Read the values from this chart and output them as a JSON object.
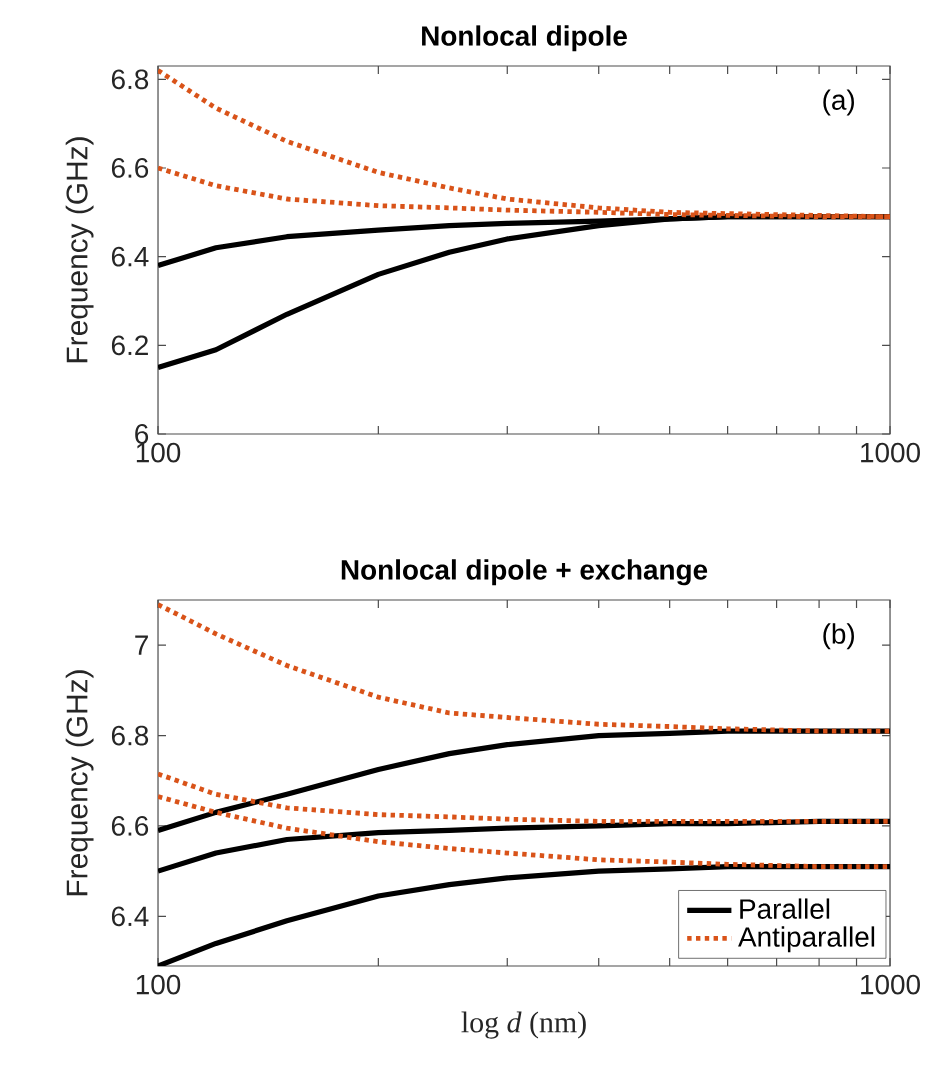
{
  "chart_data": [
    {
      "type": "line",
      "title": "Nonlocal dipole",
      "ylabel": "Frequency (GHz)",
      "annotations": [
        "(a)"
      ],
      "x": [
        100,
        120,
        150,
        200,
        250,
        300,
        400,
        500,
        600,
        800,
        1000
      ],
      "log": "x",
      "xlim": [
        100,
        1000
      ],
      "ylim": [
        6,
        6.83
      ],
      "xticks": [
        100,
        {
          "value": 200,
          "label": null
        },
        {
          "value": 300,
          "label": null
        },
        {
          "value": 400,
          "label": null
        },
        {
          "value": 500,
          "label": null
        },
        {
          "value": 600,
          "label": null
        },
        {
          "value": 700,
          "label": null
        },
        {
          "value": 800,
          "label": null
        },
        {
          "value": 900,
          "label": null
        },
        1000
      ],
      "yticks": [
        6,
        6.2,
        6.4,
        6.6,
        6.8
      ],
      "grid": false,
      "legend": false,
      "series": [
        {
          "color": "#000000",
          "line_style": "solid",
          "values": [
            6.15,
            6.19,
            6.27,
            6.36,
            6.41,
            6.44,
            6.47,
            6.485,
            6.49,
            6.49,
            6.49
          ]
        },
        {
          "color": "#000000",
          "line_style": "solid",
          "values": [
            6.38,
            6.42,
            6.445,
            6.46,
            6.47,
            6.475,
            6.48,
            6.485,
            6.49,
            6.49,
            6.49
          ]
        },
        {
          "color": "#d95319",
          "line_style": "dotted",
          "values": [
            6.82,
            6.735,
            6.66,
            6.59,
            6.555,
            6.53,
            6.51,
            6.5,
            6.497,
            6.493,
            6.49
          ]
        },
        {
          "color": "#d95319",
          "line_style": "dotted",
          "values": [
            6.6,
            6.56,
            6.53,
            6.515,
            6.51,
            6.505,
            6.5,
            6.495,
            6.493,
            6.49,
            6.49
          ]
        }
      ]
    },
    {
      "type": "line",
      "title": "Nonlocal dipole + exchange",
      "xlabel": "log *d* (nm)",
      "ylabel": "Frequency (GHz)",
      "annotations": [
        "(b)"
      ],
      "x": [
        100,
        120,
        150,
        200,
        250,
        300,
        400,
        500,
        600,
        800,
        1000
      ],
      "log": "x",
      "xlim": [
        100,
        1000
      ],
      "ylim": [
        6.29,
        7.1
      ],
      "xticks": [
        100,
        {
          "value": 200,
          "label": null
        },
        {
          "value": 300,
          "label": null
        },
        {
          "value": 400,
          "label": null
        },
        {
          "value": 500,
          "label": null
        },
        {
          "value": 600,
          "label": null
        },
        {
          "value": 700,
          "label": null
        },
        {
          "value": 800,
          "label": null
        },
        {
          "value": 900,
          "label": null
        },
        1000
      ],
      "yticks": [
        6.4,
        6.6,
        6.8,
        7
      ],
      "grid": false,
      "legend": "bottom right",
      "series": [
        {
          "name": "Parallel",
          "color": "#000000",
          "line_style": "solid",
          "values": [
            6.59,
            6.63,
            6.67,
            6.725,
            6.76,
            6.78,
            6.8,
            6.805,
            6.81,
            6.81,
            6.81
          ]
        },
        {
          "name": "Antiparallel",
          "color": "#d95319",
          "line_style": "dotted",
          "values": [
            7.09,
            7.025,
            6.955,
            6.885,
            6.85,
            6.84,
            6.825,
            6.82,
            6.815,
            6.81,
            6.81
          ]
        },
        {
          "color": "#000000",
          "line_style": "solid",
          "values": [
            6.5,
            6.54,
            6.57,
            6.585,
            6.59,
            6.595,
            6.6,
            6.605,
            6.605,
            6.61,
            6.61
          ]
        },
        {
          "color": "#000000",
          "line_style": "solid",
          "values": [
            6.29,
            6.34,
            6.39,
            6.445,
            6.47,
            6.485,
            6.5,
            6.505,
            6.51,
            6.51,
            6.51
          ]
        },
        {
          "color": "#d95319",
          "line_style": "dotted",
          "values": [
            6.715,
            6.67,
            6.64,
            6.625,
            6.62,
            6.615,
            6.61,
            6.61,
            6.61,
            6.61,
            6.61
          ]
        },
        {
          "color": "#d95319",
          "line_style": "dotted",
          "values": [
            6.665,
            6.63,
            6.595,
            6.565,
            6.55,
            6.54,
            6.525,
            6.52,
            6.515,
            6.51,
            6.51
          ]
        }
      ]
    }
  ]
}
